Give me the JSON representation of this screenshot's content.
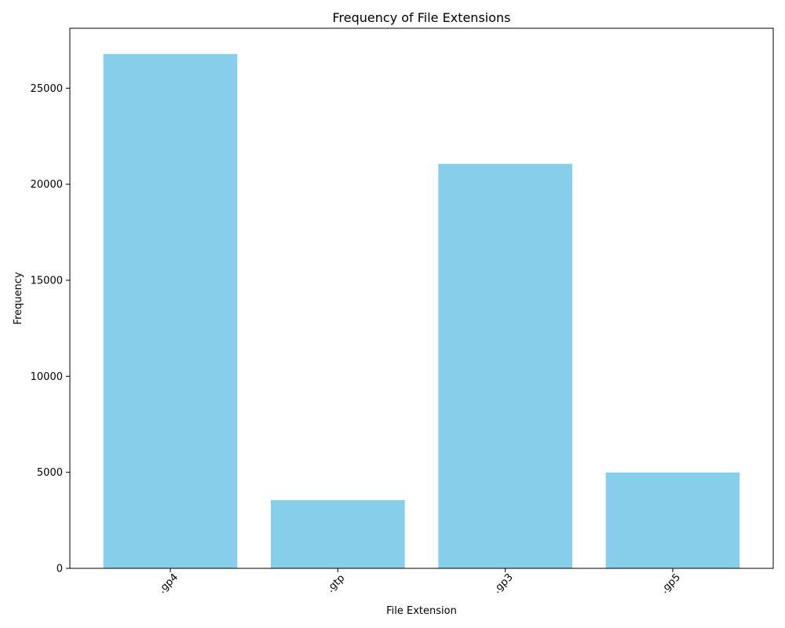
{
  "chart_data": {
    "type": "bar",
    "title": "Frequency of File Extensions",
    "xlabel": "File Extension",
    "ylabel": "Frequency",
    "categories": [
      ".gp4",
      ".gtp",
      ".gp3",
      ".gp5"
    ],
    "values": [
      26780,
      3550,
      21060,
      4990
    ],
    "ylim": [
      0,
      28120
    ],
    "yticks": [
      0,
      5000,
      10000,
      15000,
      20000,
      25000
    ],
    "xtick_rotation_deg": 45,
    "grid": false,
    "legend": "none",
    "bar_color": "#87CEEB"
  }
}
